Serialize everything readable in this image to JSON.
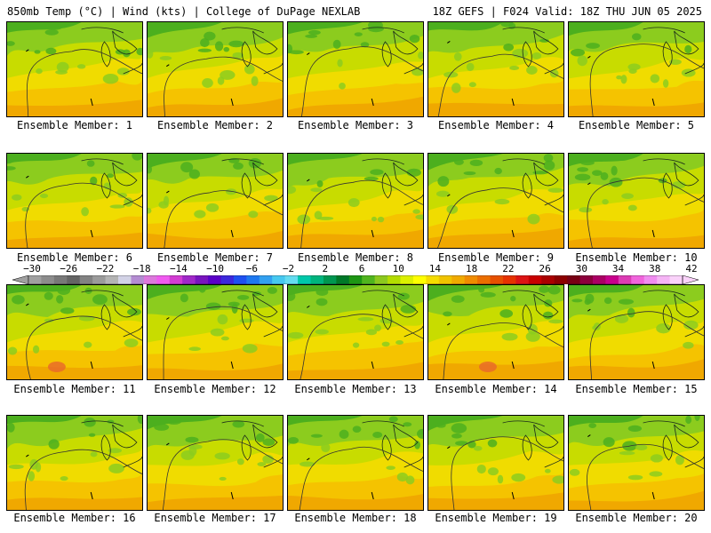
{
  "header": {
    "left": "850mb Temp (°C) | Wind (kts) | College of DuPage NEXLAB",
    "right": "18Z GEFS | F024 Valid: 18Z THU JUN 05 2025"
  },
  "colors": {
    "cool_green": "#4caf1e",
    "mid_green": "#8ccc1e",
    "lime": "#c8dc00",
    "yellow": "#f0dc00",
    "light_orange": "#f5c300",
    "orange": "#f0a800",
    "red_orange": "#e8662a"
  },
  "colorbar": {
    "ticks": [
      "−30",
      "−26",
      "−22",
      "−18",
      "−14",
      "−10",
      "−6",
      "−2",
      "2",
      "6",
      "10",
      "14",
      "18",
      "22",
      "26",
      "30",
      "34",
      "38",
      "42"
    ],
    "swatches": [
      "#a0a0a0",
      "#8c8c8c",
      "#787878",
      "#646464",
      "#828282",
      "#9b9b9b",
      "#b4b4b4",
      "#d2d2e6",
      "#b48cd2",
      "#dc78dc",
      "#f05af0",
      "#d23cd2",
      "#a028c8",
      "#7814be",
      "#5a00c8",
      "#3c28dc",
      "#1e50f0",
      "#1e78f0",
      "#32a0f0",
      "#46c8f0",
      "#64dcf0",
      "#00c8aa",
      "#00b47d",
      "#009650",
      "#007828",
      "#1e9614",
      "#50b41e",
      "#8cc81e",
      "#b4dc00",
      "#dcf000",
      "#ffff00",
      "#f5dc00",
      "#f0c300",
      "#f0aa00",
      "#f08c00",
      "#eb6e00",
      "#e65000",
      "#e63200",
      "#dc1414",
      "#c80000",
      "#aa0000",
      "#8c0000",
      "#780014",
      "#8c003c",
      "#aa0064",
      "#c8008c",
      "#dc3cb4",
      "#f064dc",
      "#f08cf0",
      "#f5b4f5",
      "#fad2fa"
    ]
  },
  "panels": [
    {
      "label": "Ensemble Member: 1"
    },
    {
      "label": "Ensemble Member: 2"
    },
    {
      "label": "Ensemble Member: 3"
    },
    {
      "label": "Ensemble Member: 4"
    },
    {
      "label": "Ensemble Member: 5"
    },
    {
      "label": "Ensemble Member: 6"
    },
    {
      "label": "Ensemble Member: 7"
    },
    {
      "label": "Ensemble Member: 8"
    },
    {
      "label": "Ensemble Member: 9"
    },
    {
      "label": "Ensemble Member: 10"
    },
    {
      "label": "Ensemble Member: 11"
    },
    {
      "label": "Ensemble Member: 12"
    },
    {
      "label": "Ensemble Member: 13"
    },
    {
      "label": "Ensemble Member: 14"
    },
    {
      "label": "Ensemble Member: 15"
    },
    {
      "label": "Ensemble Member: 16"
    },
    {
      "label": "Ensemble Member: 17"
    },
    {
      "label": "Ensemble Member: 18"
    },
    {
      "label": "Ensemble Member: 19"
    },
    {
      "label": "Ensemble Member: 20"
    }
  ]
}
